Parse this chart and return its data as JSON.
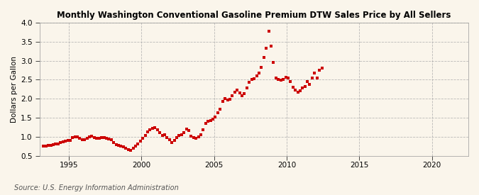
{
  "title": "Monthly Washington Conventional Gasoline Premium DTW Sales Price by All Sellers",
  "ylabel": "Dollars per Gallon",
  "source": "Source: U.S. Energy Information Administration",
  "ylim": [
    0.5,
    4.0
  ],
  "xlim": [
    1993.0,
    2022.5
  ],
  "yticks": [
    0.5,
    1.0,
    1.5,
    2.0,
    2.5,
    3.0,
    3.5,
    4.0
  ],
  "xticks": [
    1995,
    2000,
    2005,
    2010,
    2015,
    2020
  ],
  "background_color": "#faf5eb",
  "dot_color": "#cc0000",
  "dot_size": 3.5,
  "data": [
    [
      1993.25,
      0.76
    ],
    [
      1993.42,
      0.75
    ],
    [
      1993.58,
      0.77
    ],
    [
      1993.75,
      0.78
    ],
    [
      1993.92,
      0.8
    ],
    [
      1994.08,
      0.81
    ],
    [
      1994.25,
      0.82
    ],
    [
      1994.42,
      0.84
    ],
    [
      1994.58,
      0.86
    ],
    [
      1994.75,
      0.88
    ],
    [
      1994.92,
      0.9
    ],
    [
      1995.08,
      0.91
    ],
    [
      1995.25,
      0.98
    ],
    [
      1995.42,
      1.0
    ],
    [
      1995.58,
      0.99
    ],
    [
      1995.75,
      0.96
    ],
    [
      1995.92,
      0.93
    ],
    [
      1996.08,
      0.92
    ],
    [
      1996.25,
      0.96
    ],
    [
      1996.42,
      1.0
    ],
    [
      1996.58,
      1.01
    ],
    [
      1996.75,
      0.98
    ],
    [
      1996.92,
      0.96
    ],
    [
      1997.08,
      0.96
    ],
    [
      1997.25,
      0.97
    ],
    [
      1997.42,
      0.98
    ],
    [
      1997.58,
      0.96
    ],
    [
      1997.75,
      0.95
    ],
    [
      1997.92,
      0.92
    ],
    [
      1998.08,
      0.85
    ],
    [
      1998.25,
      0.8
    ],
    [
      1998.42,
      0.77
    ],
    [
      1998.58,
      0.76
    ],
    [
      1998.75,
      0.73
    ],
    [
      1998.92,
      0.7
    ],
    [
      1999.08,
      0.67
    ],
    [
      1999.25,
      0.65
    ],
    [
      1999.42,
      0.7
    ],
    [
      1999.58,
      0.75
    ],
    [
      1999.75,
      0.82
    ],
    [
      1999.92,
      0.88
    ],
    [
      2000.08,
      0.96
    ],
    [
      2000.25,
      1.03
    ],
    [
      2000.42,
      1.12
    ],
    [
      2000.58,
      1.18
    ],
    [
      2000.75,
      1.22
    ],
    [
      2000.92,
      1.24
    ],
    [
      2001.08,
      1.18
    ],
    [
      2001.25,
      1.1
    ],
    [
      2001.42,
      1.04
    ],
    [
      2001.58,
      1.06
    ],
    [
      2001.75,
      0.98
    ],
    [
      2001.92,
      0.93
    ],
    [
      2002.08,
      0.84
    ],
    [
      2002.25,
      0.9
    ],
    [
      2002.42,
      0.98
    ],
    [
      2002.58,
      1.03
    ],
    [
      2002.75,
      1.06
    ],
    [
      2002.92,
      1.1
    ],
    [
      2003.08,
      1.2
    ],
    [
      2003.25,
      1.16
    ],
    [
      2003.42,
      1.02
    ],
    [
      2003.58,
      0.98
    ],
    [
      2003.75,
      0.96
    ],
    [
      2003.92,
      1.0
    ],
    [
      2004.08,
      1.06
    ],
    [
      2004.25,
      1.18
    ],
    [
      2004.42,
      1.35
    ],
    [
      2004.58,
      1.4
    ],
    [
      2004.75,
      1.43
    ],
    [
      2004.92,
      1.46
    ],
    [
      2005.08,
      1.52
    ],
    [
      2005.25,
      1.63
    ],
    [
      2005.42,
      1.73
    ],
    [
      2005.58,
      1.93
    ],
    [
      2005.75,
      2.0
    ],
    [
      2005.92,
      1.96
    ],
    [
      2006.08,
      1.98
    ],
    [
      2006.25,
      2.08
    ],
    [
      2006.42,
      2.18
    ],
    [
      2006.58,
      2.22
    ],
    [
      2006.75,
      2.15
    ],
    [
      2006.92,
      2.08
    ],
    [
      2007.08,
      2.13
    ],
    [
      2007.25,
      2.28
    ],
    [
      2007.42,
      2.43
    ],
    [
      2007.58,
      2.5
    ],
    [
      2007.75,
      2.53
    ],
    [
      2007.92,
      2.6
    ],
    [
      2008.08,
      2.67
    ],
    [
      2008.25,
      2.82
    ],
    [
      2008.42,
      3.08
    ],
    [
      2008.58,
      3.32
    ],
    [
      2008.75,
      3.78
    ],
    [
      2008.92,
      3.38
    ],
    [
      2009.08,
      2.95
    ],
    [
      2009.25,
      2.55
    ],
    [
      2009.42,
      2.5
    ],
    [
      2009.58,
      2.48
    ],
    [
      2009.75,
      2.5
    ],
    [
      2009.92,
      2.57
    ],
    [
      2010.08,
      2.55
    ],
    [
      2010.25,
      2.45
    ],
    [
      2010.42,
      2.3
    ],
    [
      2010.58,
      2.22
    ],
    [
      2010.75,
      2.18
    ],
    [
      2010.92,
      2.2
    ],
    [
      2011.08,
      2.28
    ],
    [
      2011.25,
      2.32
    ],
    [
      2011.42,
      2.45
    ],
    [
      2011.58,
      2.38
    ],
    [
      2011.75,
      2.55
    ],
    [
      2011.92,
      2.68
    ],
    [
      2012.08,
      2.55
    ],
    [
      2012.25,
      2.75
    ],
    [
      2012.42,
      2.8
    ]
  ]
}
